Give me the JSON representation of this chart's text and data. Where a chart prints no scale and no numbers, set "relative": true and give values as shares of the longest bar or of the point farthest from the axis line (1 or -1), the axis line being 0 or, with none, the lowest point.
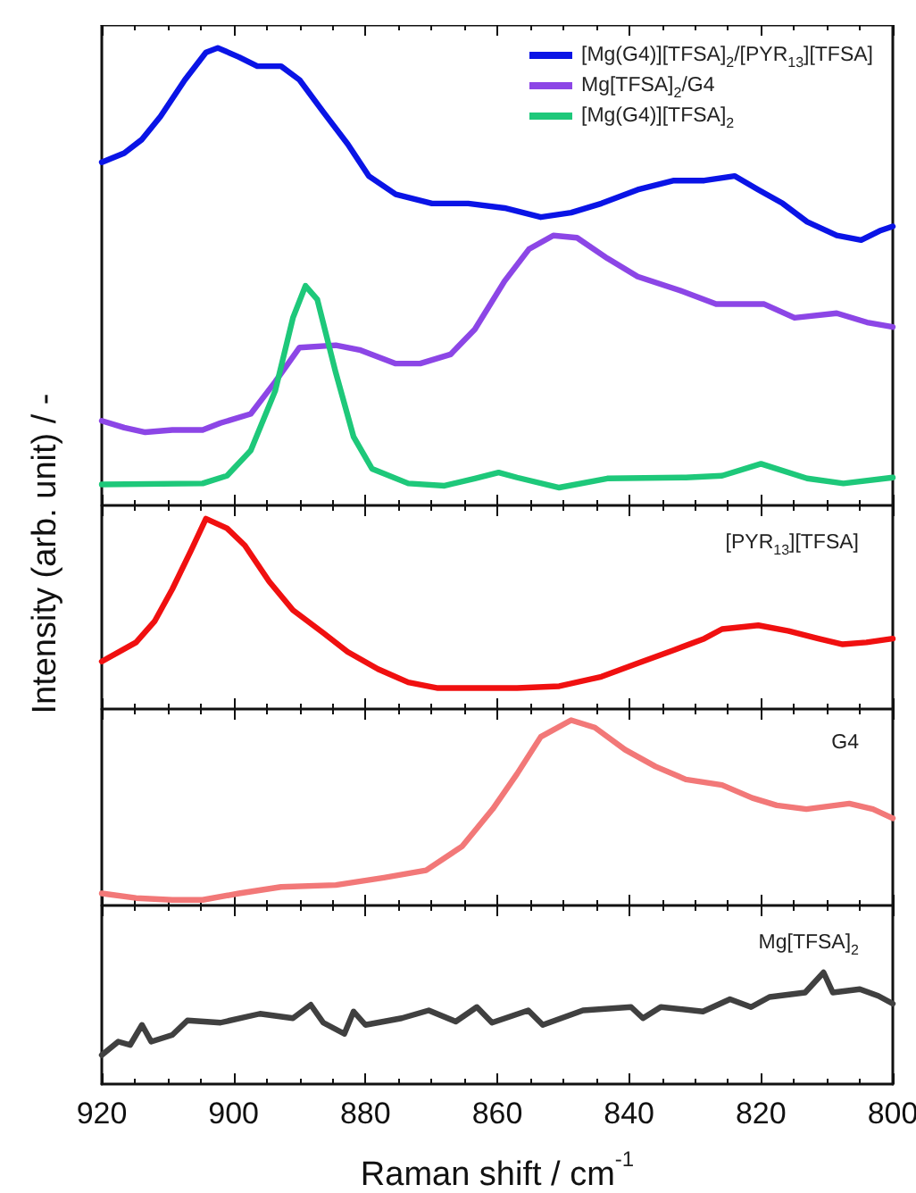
{
  "chart_data": [
    {
      "type": "line",
      "relative": true,
      "ylabel": "Intensity (arb. unit) / -",
      "xlim": [
        920,
        800
      ],
      "xticks": [
        920,
        900,
        880,
        860,
        840,
        820,
        800
      ],
      "tick_labels": false,
      "legend": "top right",
      "marker": "none",
      "grid": false,
      "series": [
        {
          "name": "[Mg(G4)][TFSA]$_{2}$/[PYR$_{13}$][TFSA]",
          "color": "#0a14e6",
          "x": [
            920,
            916.6,
            913.9,
            911.1,
            907.4,
            904.2,
            902.4,
            899.2,
            896.4,
            892.8,
            890,
            886.4,
            882.7,
            879.5,
            875.4,
            869.9,
            864.4,
            858.9,
            853.4,
            848.8,
            844.2,
            838.7,
            833.2,
            828.6,
            824,
            820.4,
            816.7,
            813,
            808.5,
            804.8,
            802,
            800
          ],
          "values": [
            0.75,
            0.77,
            0.8,
            0.85,
            0.93,
            0.99,
            1.0,
            0.98,
            0.96,
            0.96,
            0.93,
            0.86,
            0.79,
            0.72,
            0.68,
            0.66,
            0.66,
            0.65,
            0.63,
            0.64,
            0.66,
            0.69,
            0.71,
            0.71,
            0.72,
            0.69,
            0.66,
            0.62,
            0.59,
            0.58,
            0.6,
            0.61
          ]
        },
        {
          "name": "Mg[TFSA]$_{2}$/G4",
          "color": "#8c46e6",
          "x": [
            920,
            916.6,
            913.4,
            909.3,
            904.7,
            902,
            897.4,
            893.7,
            890,
            884.5,
            880.9,
            875.4,
            871.7,
            867.1,
            863.4,
            858.9,
            855.2,
            851.5,
            847.9,
            843.3,
            838.7,
            832.3,
            826.8,
            819.5,
            814.9,
            808.5,
            803.9,
            800
          ],
          "values": [
            0.185,
            0.17,
            0.16,
            0.165,
            0.165,
            0.18,
            0.2,
            0.27,
            0.345,
            0.35,
            0.34,
            0.31,
            0.31,
            0.33,
            0.385,
            0.49,
            0.56,
            0.59,
            0.585,
            0.54,
            0.5,
            0.47,
            0.44,
            0.44,
            0.41,
            0.42,
            0.4,
            0.39
          ]
        },
        {
          "name": "[Mg(G4)][TFSA]$_{2}$",
          "color": "#1ec87a",
          "x": [
            920,
            904.7,
            901,
            897.4,
            893.7,
            891,
            889.1,
            887.3,
            884.5,
            881.8,
            879,
            873.5,
            868,
            863.4,
            859.8,
            857,
            850.6,
            843.3,
            831.4,
            825.9,
            820,
            813,
            807.5,
            800
          ],
          "values": [
            0.046,
            0.048,
            0.065,
            0.12,
            0.25,
            0.41,
            0.48,
            0.45,
            0.29,
            0.15,
            0.08,
            0.048,
            0.043,
            0.059,
            0.072,
            0.061,
            0.039,
            0.059,
            0.061,
            0.065,
            0.091,
            0.059,
            0.048,
            0.061
          ]
        }
      ]
    },
    {
      "type": "line",
      "relative": true,
      "xlim": [
        920,
        800
      ],
      "xticks": [
        920,
        900,
        880,
        860,
        840,
        820,
        800
      ],
      "tick_labels": false,
      "marker": "none",
      "grid": false,
      "series": [
        {
          "name": "[PYR$_{13}$][TFSA]",
          "color": "#f01010",
          "x": [
            920,
            914.8,
            912,
            909.3,
            906.5,
            904.2,
            901,
            898.3,
            894.6,
            891,
            886.4,
            882.7,
            878.1,
            873.5,
            869,
            863.4,
            857,
            850.6,
            844.2,
            838.7,
            833.2,
            828.6,
            825.9,
            820.4,
            815.8,
            811.3,
            807.6,
            804,
            800
          ],
          "values": [
            0.25,
            0.35,
            0.46,
            0.63,
            0.83,
            1.0,
            0.95,
            0.86,
            0.67,
            0.52,
            0.4,
            0.3,
            0.21,
            0.14,
            0.11,
            0.11,
            0.11,
            0.12,
            0.17,
            0.24,
            0.31,
            0.37,
            0.42,
            0.44,
            0.41,
            0.37,
            0.34,
            0.35,
            0.37
          ]
        }
      ]
    },
    {
      "type": "line",
      "relative": true,
      "xlim": [
        920,
        800
      ],
      "xticks": [
        920,
        900,
        880,
        860,
        840,
        820,
        800
      ],
      "tick_labels": false,
      "marker": "none",
      "grid": false,
      "series": [
        {
          "name": "G4",
          "color": "#f27878",
          "x": [
            920,
            914.8,
            909.3,
            904.7,
            899.2,
            892.8,
            884.5,
            877.2,
            870.8,
            865.3,
            860.7,
            857,
            853.4,
            848.8,
            845.2,
            840.6,
            836,
            831.4,
            825.9,
            821.3,
            817.6,
            813.1,
            806.6,
            803,
            800
          ],
          "values": [
            0.065,
            0.04,
            0.03,
            0.03,
            0.065,
            0.1,
            0.11,
            0.15,
            0.19,
            0.32,
            0.52,
            0.71,
            0.91,
            1.0,
            0.96,
            0.84,
            0.75,
            0.68,
            0.65,
            0.58,
            0.54,
            0.52,
            0.55,
            0.52,
            0.47
          ]
        }
      ]
    },
    {
      "type": "line",
      "relative": true,
      "xlabel": "Raman shift / cm$^{-1}$",
      "xlim": [
        920,
        800
      ],
      "xticks": [
        920,
        900,
        880,
        860,
        840,
        820,
        800
      ],
      "tick_labels": "x",
      "marker": "none",
      "grid": false,
      "series": [
        {
          "name": "Mg[TFSA]$_{2}$",
          "color": "#404040",
          "x": [
            920,
            917.5,
            915.7,
            913.9,
            912.5,
            909.3,
            907,
            902,
            896,
            891,
            888.3,
            886.4,
            883.2,
            881.8,
            880,
            874.5,
            870.4,
            866.3,
            863.1,
            860.8,
            855.3,
            853.1,
            847,
            839.7,
            837.9,
            835.2,
            828.8,
            824.7,
            821.5,
            818.7,
            813.3,
            810.5,
            809.1,
            805,
            802.2,
            800
          ],
          "values": [
            0.26,
            0.38,
            0.35,
            0.53,
            0.38,
            0.44,
            0.57,
            0.55,
            0.63,
            0.59,
            0.71,
            0.55,
            0.45,
            0.65,
            0.53,
            0.59,
            0.66,
            0.56,
            0.69,
            0.55,
            0.66,
            0.53,
            0.66,
            0.69,
            0.59,
            0.69,
            0.65,
            0.76,
            0.69,
            0.78,
            0.82,
            1.0,
            0.82,
            0.85,
            0.79,
            0.72
          ]
        }
      ]
    }
  ]
}
